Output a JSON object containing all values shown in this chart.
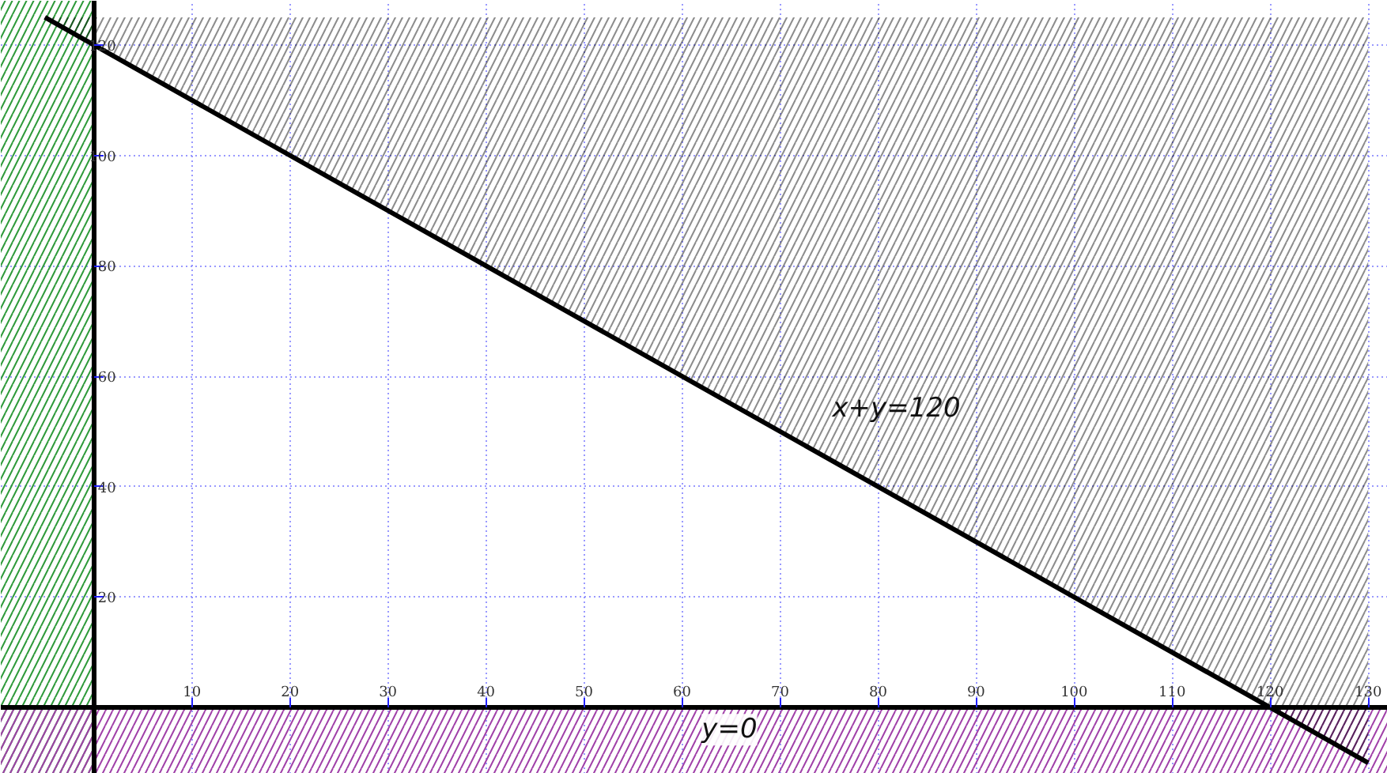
{
  "chart_data": {
    "type": "line",
    "series": [
      {
        "color": "#000000",
        "x": [
          -5,
          0,
          120,
          130
        ],
        "values": [
          125,
          120,
          0,
          -10
        ],
        "lower": [
          125,
          120,
          0,
          -10
        ],
        "upper": [
          125,
          125,
          125,
          125
        ]
      }
    ],
    "xlim": [
      -9.5,
      132
    ],
    "ylim": [
      -12,
      128
    ],
    "xticks": [
      10,
      20,
      30,
      40,
      50,
      60,
      70,
      80,
      90,
      100,
      110,
      120,
      130
    ],
    "yticks": [
      20,
      40,
      60,
      80,
      100,
      120
    ],
    "grid": true,
    "marker": "none",
    "line_style": "solid",
    "bands": [
      {
        "axis": "x",
        "from": -9.5,
        "to": 0,
        "color": "#2e9a3a"
      },
      {
        "axis": "y",
        "from": -12,
        "to": 0,
        "color": "#a040a8"
      }
    ],
    "annotations": [
      {
        "text": "x+y=120",
        "x": 75,
        "y": 45
      },
      {
        "text": "y=0",
        "x": 62,
        "y": 0
      }
    ]
  }
}
